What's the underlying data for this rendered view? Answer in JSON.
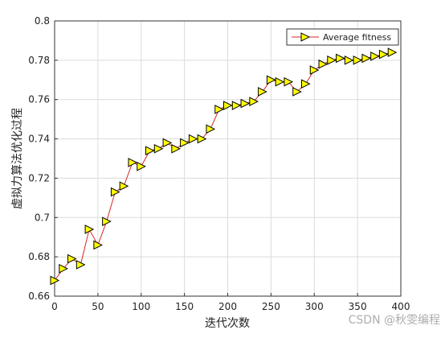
{
  "chart_data": {
    "type": "line",
    "x": [
      0,
      10,
      20,
      30,
      40,
      50,
      60,
      70,
      80,
      90,
      100,
      110,
      120,
      130,
      140,
      150,
      160,
      170,
      180,
      190,
      200,
      210,
      220,
      230,
      240,
      250,
      260,
      270,
      280,
      290,
      300,
      310,
      320,
      330,
      340,
      350,
      360,
      370,
      380,
      390
    ],
    "series": [
      {
        "name": "Average fitness",
        "color": "#d62728",
        "marker_color": "#ffff00",
        "values": [
          0.668,
          0.674,
          0.679,
          0.676,
          0.694,
          0.686,
          0.698,
          0.713,
          0.716,
          0.728,
          0.726,
          0.734,
          0.735,
          0.738,
          0.735,
          0.738,
          0.74,
          0.74,
          0.745,
          0.755,
          0.757,
          0.757,
          0.758,
          0.759,
          0.764,
          0.77,
          0.769,
          0.769,
          0.764,
          0.768,
          0.775,
          0.778,
          0.78,
          0.781,
          0.78,
          0.78,
          0.781,
          0.782,
          0.783,
          0.784
        ]
      }
    ],
    "xlabel": "迭代次数",
    "ylabel": "虚拟力算法优化过程",
    "xlim": [
      0,
      400
    ],
    "xticks": [
      0,
      50,
      100,
      150,
      200,
      250,
      300,
      350,
      400
    ],
    "ylim": [
      0.66,
      0.8
    ],
    "yticks": [
      0.66,
      0.68,
      0.7,
      0.72,
      0.74,
      0.76,
      0.78,
      0.8
    ],
    "grid": true,
    "legend": "upper right",
    "watermark": "CSDN @秋雯编程"
  }
}
